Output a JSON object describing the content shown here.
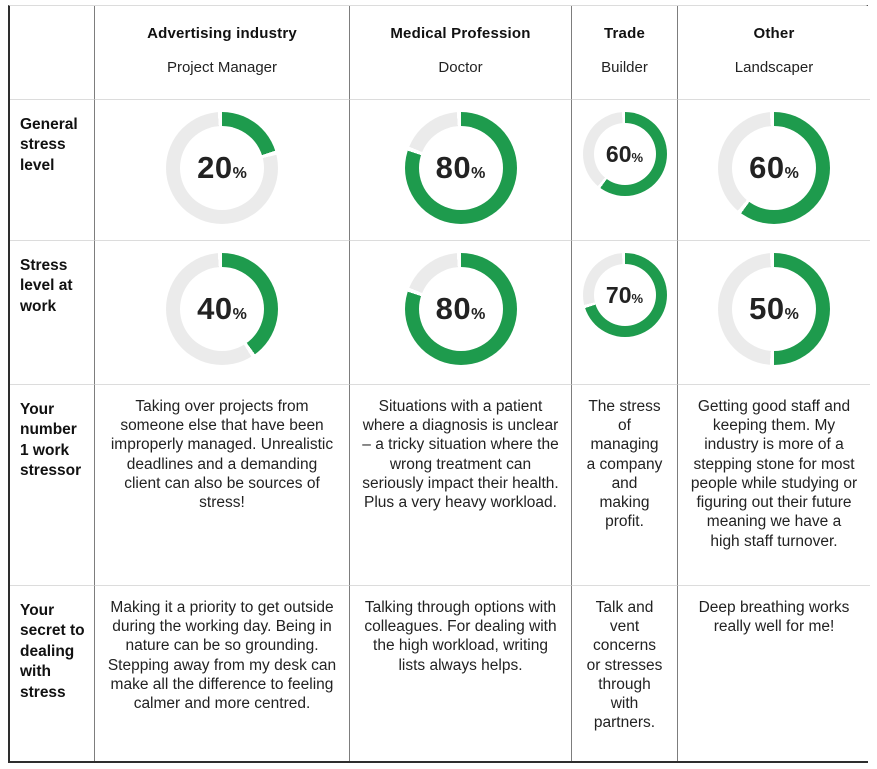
{
  "colors": {
    "green": "#1e9b4d",
    "track": "#ebebeb",
    "grid_vertical": "#7d7d7d",
    "grid_horizontal": "#dcdcdc",
    "outer_border": "#2e2e2e",
    "text": "#1f1f1f"
  },
  "percent_sign": "%",
  "header": {
    "columns": [
      {
        "industry": "Advertising industry",
        "role": "Project Manager"
      },
      {
        "industry": "Medical Profession",
        "role": "Doctor"
      },
      {
        "industry": "Trade",
        "role": "Builder"
      },
      {
        "industry": "Other",
        "role": "Landscaper"
      }
    ]
  },
  "rows": {
    "general": {
      "label": "General stress level",
      "values": [
        20,
        80,
        60,
        60
      ]
    },
    "work": {
      "label": "Stress level at work",
      "values": [
        40,
        80,
        70,
        50
      ]
    },
    "stressor": {
      "label": "Your number 1 work stressor",
      "texts": [
        "Taking over projects from someone else that have been improperly managed. Unrealistic deadlines and a demanding client can also be sources of stress!",
        "Situations with a patient where a diagnosis is unclear – a tricky situation where the wrong treatment can seriously impact their health.  Plus a very heavy workload.",
        "The stress of managing a company and making profit.",
        "Getting good staff and keeping them. My industry is more of a stepping stone for most people while studying or figuring out their future meaning we have a high staff turnover."
      ]
    },
    "secret": {
      "label": "Your secret to dealing with stress",
      "texts": [
        "Making it a priority to get outside during the working day. Being in nature can be so grounding. Stepping away from my desk can make all the difference to feeling calmer and more centred.",
        "Talking through options with colleagues. For dealing with the high workload, writing lists always helps.",
        "Talk and vent concerns or stresses through with partners.",
        "Deep breathing works really well for me!"
      ]
    }
  },
  "chart_data": [
    {
      "type": "donut-gauge",
      "title": "General stress level",
      "categories": [
        "Project Manager (Advertising industry)",
        "Doctor (Medical Profession)",
        "Builder (Trade)",
        "Landscaper (Other)"
      ],
      "values": [
        20,
        80,
        60,
        60
      ],
      "unit": "%",
      "value_range": [
        0,
        100
      ],
      "arc_start": "12 o'clock, clockwise",
      "arc_color": "#1e9b4d",
      "track_color": "#ebebeb"
    },
    {
      "type": "donut-gauge",
      "title": "Stress level at work",
      "categories": [
        "Project Manager (Advertising industry)",
        "Doctor (Medical Profession)",
        "Builder (Trade)",
        "Landscaper (Other)"
      ],
      "values": [
        40,
        80,
        70,
        50
      ],
      "unit": "%",
      "value_range": [
        0,
        100
      ],
      "arc_start": "12 o'clock, clockwise",
      "arc_color": "#1e9b4d",
      "track_color": "#ebebeb"
    }
  ]
}
